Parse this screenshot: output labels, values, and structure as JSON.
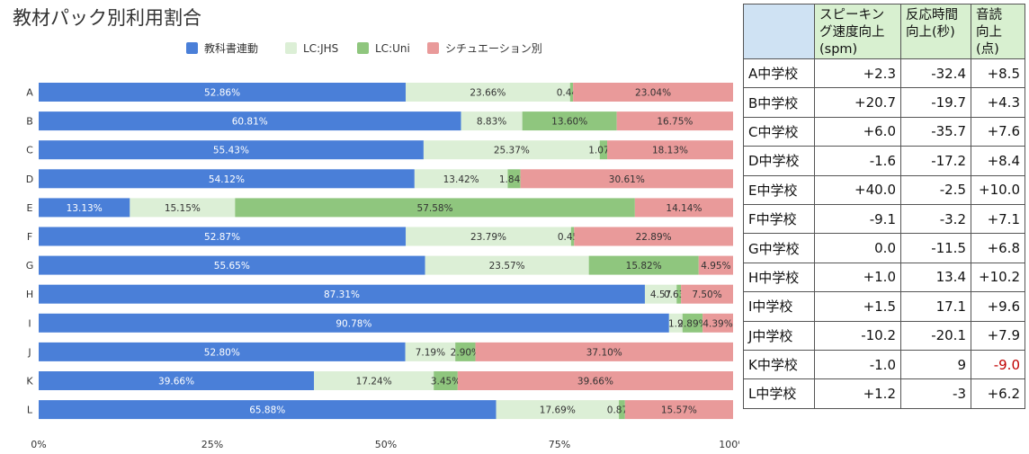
{
  "chart_data": {
    "type": "bar",
    "orientation": "horizontal",
    "stacked": "percent",
    "title": "教材パック別利用割合",
    "categories": [
      "A",
      "B",
      "C",
      "D",
      "E",
      "F",
      "G",
      "H",
      "I",
      "J",
      "K",
      "L"
    ],
    "series": [
      {
        "name": "教科書連動",
        "color": "#4a7fd8",
        "values": [
          52.86,
          60.81,
          55.43,
          54.12,
          13.13,
          52.87,
          55.65,
          87.31,
          90.78,
          52.8,
          39.66,
          65.88
        ],
        "labels": [
          "52.86%",
          "60.81%",
          "55.43%",
          "54.12%",
          "13.13%",
          "52.87%",
          "55.65%",
          "87.31%",
          "90.78%",
          "52.80%",
          "39.66%",
          "65.88%"
        ]
      },
      {
        "name": "LC:JHS",
        "color": "#dcefd6",
        "values": [
          23.66,
          8.83,
          25.37,
          13.42,
          15.15,
          23.79,
          23.57,
          4.57,
          1.94,
          7.19,
          17.24,
          17.69
        ],
        "labels": [
          "23.66%",
          "8.83%",
          "25.37%",
          "13.42%",
          "15.15%",
          "23.79%",
          "23.57%",
          "4.57",
          "1.9",
          "7.19%",
          "17.24%",
          "17.69%"
        ]
      },
      {
        "name": "LC:Uni",
        "color": "#8fc67e",
        "values": [
          0.44,
          13.6,
          1.07,
          1.84,
          57.58,
          0.45,
          15.82,
          0.63,
          2.89,
          2.9,
          3.45,
          0.87
        ],
        "labels": [
          "0.44%",
          "13.60%",
          "1.07%",
          "1.84%",
          "57.58%",
          "0.45%",
          "15.82%",
          "0.63%",
          "2.89%",
          "2.90%",
          "3.45%",
          "0.87%"
        ]
      },
      {
        "name": "シチュエーション別",
        "color": "#e99a9a",
        "values": [
          23.04,
          16.75,
          18.13,
          30.61,
          14.14,
          22.89,
          4.95,
          7.5,
          4.39,
          37.1,
          39.66,
          15.57
        ],
        "labels": [
          "23.04%",
          "16.75%",
          "18.13%",
          "30.61%",
          "14.14%",
          "22.89%",
          "4.95%",
          "7.50%",
          "4.39%",
          "37.10%",
          "39.66%",
          "15.57%"
        ]
      }
    ],
    "xlim": [
      0,
      100
    ],
    "xticks": [
      "0%",
      "25%",
      "50%",
      "75%",
      "100%"
    ],
    "xlabel": "",
    "ylabel": "",
    "legend": "top-center",
    "grid": false
  },
  "table": {
    "headers": [
      "",
      "スピーキング速度向上(spm)",
      "反応時間向上(秒)",
      "音読向上(点)"
    ],
    "header_lines": [
      [
        ""
      ],
      [
        "スピーキン",
        "グ速度向上",
        "(spm)"
      ],
      [
        "反応時間",
        "向上(秒)"
      ],
      [
        "音読",
        "向上",
        "(点)"
      ]
    ],
    "rows": [
      {
        "name": "A中学校",
        "values": [
          "+2.3",
          "-32.4",
          "+8.5"
        ]
      },
      {
        "name": "B中学校",
        "values": [
          "+20.7",
          "-19.7",
          "+4.3"
        ]
      },
      {
        "name": "C中学校",
        "values": [
          "+6.0",
          "-35.7",
          "+7.6"
        ]
      },
      {
        "name": "D中学校",
        "values": [
          "-1.6",
          "-17.2",
          "+8.4"
        ]
      },
      {
        "name": "E中学校",
        "values": [
          "+40.0",
          "-2.5",
          "+10.0"
        ]
      },
      {
        "name": "F中学校",
        "values": [
          "-9.1",
          "-3.2",
          "+7.1"
        ]
      },
      {
        "name": "G中学校",
        "values": [
          "0.0",
          "-11.5",
          "+6.8"
        ]
      },
      {
        "name": "H中学校",
        "values": [
          "+1.0",
          "13.4",
          "+10.2"
        ]
      },
      {
        "name": "I中学校",
        "values": [
          "+1.5",
          "17.1",
          "+9.6"
        ]
      },
      {
        "name": "J中学校",
        "values": [
          "-10.2",
          "-20.1",
          "+7.9"
        ]
      },
      {
        "name": "K中学校",
        "values": [
          "-1.0",
          "9",
          "-9.0"
        ]
      },
      {
        "name": "L中学校",
        "values": [
          "+1.2",
          "-3",
          "+6.2"
        ]
      }
    ],
    "negative_highlight": {
      "row": 10,
      "col": 2,
      "color": "#c00000"
    }
  }
}
